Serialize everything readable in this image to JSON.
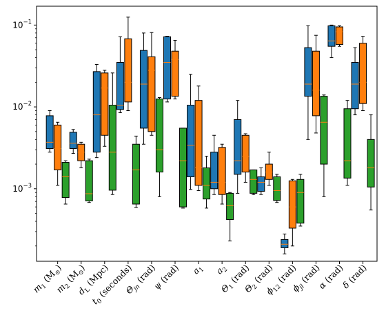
{
  "chart_data": {
    "type": "box",
    "title": "",
    "xlabel": "",
    "ylabel": "",
    "yscale": "log",
    "ylim": [
      0.00013,
      0.17
    ],
    "grid": false,
    "legend": "none",
    "y_ticks": [
      {
        "value": 0.001,
        "base": "10",
        "exp": "−3"
      },
      {
        "value": 0.01,
        "base": "10",
        "exp": "−2"
      },
      {
        "value": 0.1,
        "base": "10",
        "exp": "−1"
      }
    ],
    "categories": [
      {
        "parts": [
          [
            "m",
            "i"
          ],
          [
            "1",
            "sub"
          ],
          [
            " (M",
            "n"
          ],
          [
            "⊙",
            "sub"
          ],
          [
            ")",
            "n"
          ]
        ]
      },
      {
        "parts": [
          [
            "m",
            "i"
          ],
          [
            "2",
            "sub"
          ],
          [
            " (M",
            "n"
          ],
          [
            "⊙",
            "sub"
          ],
          [
            ")",
            "n"
          ]
        ]
      },
      {
        "parts": [
          [
            "d",
            "i"
          ],
          [
            "L",
            "sub"
          ],
          [
            " (Mpc)",
            "n"
          ]
        ]
      },
      {
        "parts": [
          [
            "t",
            "i"
          ],
          [
            "0",
            "sub"
          ],
          [
            " (seconds)",
            "n"
          ]
        ]
      },
      {
        "parts": [
          [
            "Θ",
            "i"
          ],
          [
            "jn",
            "subi"
          ],
          [
            " (rad)",
            "n"
          ]
        ]
      },
      {
        "parts": [
          [
            "ψ",
            "i"
          ],
          [
            " (rad)",
            "n"
          ]
        ]
      },
      {
        "parts": [
          [
            "a",
            "i"
          ],
          [
            "1",
            "sub"
          ]
        ]
      },
      {
        "parts": [
          [
            "a",
            "i"
          ],
          [
            "2",
            "sub"
          ]
        ]
      },
      {
        "parts": [
          [
            "Θ",
            "i"
          ],
          [
            "1",
            "sub"
          ],
          [
            " (rad)",
            "n"
          ]
        ]
      },
      {
        "parts": [
          [
            "Θ",
            "i"
          ],
          [
            "2",
            "sub"
          ],
          [
            " (rad)",
            "n"
          ]
        ]
      },
      {
        "parts": [
          [
            "ϕ",
            "i"
          ],
          [
            "12",
            "sub"
          ],
          [
            " (rad)",
            "n"
          ]
        ]
      },
      {
        "parts": [
          [
            "ϕ",
            "i"
          ],
          [
            "jl",
            "subi"
          ],
          [
            " (rad)",
            "n"
          ]
        ]
      },
      {
        "parts": [
          [
            "α",
            "i"
          ],
          [
            " (rad)",
            "n"
          ]
        ]
      },
      {
        "parts": [
          [
            "δ",
            "i"
          ],
          [
            " (rad)",
            "n"
          ]
        ]
      }
    ],
    "series": [
      {
        "color": "#1f77b4",
        "boxes": [
          {
            "whislo": 0.0028,
            "q1": 0.0031,
            "med": 0.0037,
            "q3": 0.0078,
            "whishi": 0.009
          },
          {
            "whislo": 0.0027,
            "q1": 0.0031,
            "med": 0.0036,
            "q3": 0.0049,
            "whishi": 0.0053
          },
          {
            "whislo": 0.0024,
            "q1": 0.0028,
            "med": 0.008,
            "q3": 0.027,
            "whishi": 0.033
          },
          {
            "whislo": 0.0085,
            "q1": 0.0093,
            "med": 0.0105,
            "q3": 0.035,
            "whishi": 0.072
          },
          {
            "whislo": 0.0035,
            "q1": 0.0055,
            "med": 0.019,
            "q3": 0.049,
            "whishi": 0.08
          },
          {
            "whislo": 0.0115,
            "q1": 0.0125,
            "med": 0.035,
            "q3": 0.072,
            "whishi": 0.073
          },
          {
            "whislo": 0.00098,
            "q1": 0.0014,
            "med": 0.0034,
            "q3": 0.0105,
            "whishi": 0.025
          },
          {
            "whislo": 0.00085,
            "q1": 0.001,
            "med": 0.0012,
            "q3": 0.0028,
            "whishi": 0.0045
          },
          {
            "whislo": 0.00088,
            "q1": 0.0015,
            "med": 0.0022,
            "q3": 0.007,
            "whishi": 0.012
          },
          {
            "whislo": 0.00085,
            "q1": 0.00093,
            "med": 0.0012,
            "q3": 0.0014,
            "whishi": 0.0018
          },
          {
            "whislo": 0.00016,
            "q1": 0.00019,
            "med": 0.00021,
            "q3": 0.00024,
            "whishi": 0.00028
          },
          {
            "whislo": 0.004,
            "q1": 0.0135,
            "med": 0.019,
            "q3": 0.053,
            "whishi": 0.098
          },
          {
            "whislo": 0.04,
            "q1": 0.055,
            "med": 0.064,
            "q3": 0.098,
            "whishi": 0.1
          },
          {
            "whislo": 0.008,
            "q1": 0.0095,
            "med": 0.019,
            "q3": 0.035,
            "whishi": 0.053
          }
        ]
      },
      {
        "color": "#ff7f0e",
        "boxes": [
          {
            "whislo": 0.0011,
            "q1": 0.0017,
            "med": 0.0031,
            "q3": 0.006,
            "whishi": 0.0065
          },
          {
            "whislo": 0.0018,
            "q1": 0.0022,
            "med": 0.0028,
            "q3": 0.0035,
            "whishi": 0.0037
          },
          {
            "whislo": 0.0033,
            "q1": 0.0045,
            "med": 0.017,
            "q3": 0.026,
            "whishi": 0.028
          },
          {
            "whislo": 0.009,
            "q1": 0.0115,
            "med": 0.02,
            "q3": 0.068,
            "whishi": 0.125
          },
          {
            "whislo": 0.0045,
            "q1": 0.005,
            "med": 0.028,
            "q3": 0.041,
            "whishi": 0.081
          },
          {
            "whislo": 0.0125,
            "q1": 0.0135,
            "med": 0.038,
            "q3": 0.048,
            "whishi": 0.065
          },
          {
            "whislo": 0.00095,
            "q1": 0.0011,
            "med": 0.0018,
            "q3": 0.012,
            "whishi": 0.018
          },
          {
            "whislo": 0.00065,
            "q1": 0.00085,
            "med": 0.0012,
            "q3": 0.0032,
            "whishi": 0.0035
          },
          {
            "whislo": 0.0012,
            "q1": 0.0016,
            "med": 0.0025,
            "q3": 0.0045,
            "whishi": 0.0047
          },
          {
            "whislo": 0.0011,
            "q1": 0.0013,
            "med": 0.0016,
            "q3": 0.002,
            "whishi": 0.0028
          },
          {
            "whislo": 0.0002,
            "q1": 0.00033,
            "med": 0.0006,
            "q3": 0.00125,
            "whishi": 0.0013
          },
          {
            "whislo": 0.0048,
            "q1": 0.0078,
            "med": 0.016,
            "q3": 0.048,
            "whishi": 0.075
          },
          {
            "whislo": 0.055,
            "q1": 0.058,
            "med": 0.083,
            "q3": 0.095,
            "whishi": 0.098
          },
          {
            "whislo": 0.009,
            "q1": 0.011,
            "med": 0.02,
            "q3": 0.06,
            "whishi": 0.073
          }
        ]
      },
      {
        "color": "#2ca02c",
        "boxes": [
          {
            "whislo": 0.00065,
            "q1": 0.00078,
            "med": 0.0014,
            "q3": 0.0021,
            "whishi": 0.0022
          },
          {
            "whislo": 0.00068,
            "q1": 0.00071,
            "med": 0.00087,
            "q3": 0.0022,
            "whishi": 0.0023
          },
          {
            "whislo": 0.00085,
            "q1": 0.00096,
            "med": 0.0028,
            "q3": 0.0105,
            "whishi": 0.026
          },
          {
            "whislo": 0.00059,
            "q1": 0.00065,
            "med": 0.0017,
            "q3": 0.0035,
            "whishi": 0.0044
          },
          {
            "whislo": 0.0008,
            "q1": 0.0016,
            "med": 0.003,
            "q3": 0.0125,
            "whishi": 0.013
          },
          {
            "whislo": 0.00058,
            "q1": 0.0006,
            "med": 0.0022,
            "q3": 0.0055,
            "whishi": 0.0055
          },
          {
            "whislo": 0.00058,
            "q1": 0.00075,
            "med": 0.0011,
            "q3": 0.0018,
            "whishi": 0.0025
          },
          {
            "whislo": 0.00023,
            "q1": 0.00042,
            "med": 0.00062,
            "q3": 0.00088,
            "whishi": 0.0009
          },
          {
            "whislo": 0.00085,
            "q1": 0.00088,
            "med": 0.0013,
            "q3": 0.0017,
            "whishi": 0.0017
          },
          {
            "whislo": 0.00068,
            "q1": 0.00072,
            "med": 0.00095,
            "q3": 0.0014,
            "whishi": 0.0015
          },
          {
            "whislo": 0.00035,
            "q1": 0.00038,
            "med": 0.0009,
            "q3": 0.0013,
            "whishi": 0.0015
          },
          {
            "whislo": 0.0008,
            "q1": 0.002,
            "med": 0.0065,
            "q3": 0.0135,
            "whishi": 0.014
          },
          {
            "whislo": 0.0011,
            "q1": 0.00135,
            "med": 0.0022,
            "q3": 0.0095,
            "whishi": 0.012
          },
          {
            "whislo": 0.00055,
            "q1": 0.00105,
            "med": 0.0018,
            "q3": 0.004,
            "whishi": 0.008
          }
        ]
      }
    ]
  }
}
